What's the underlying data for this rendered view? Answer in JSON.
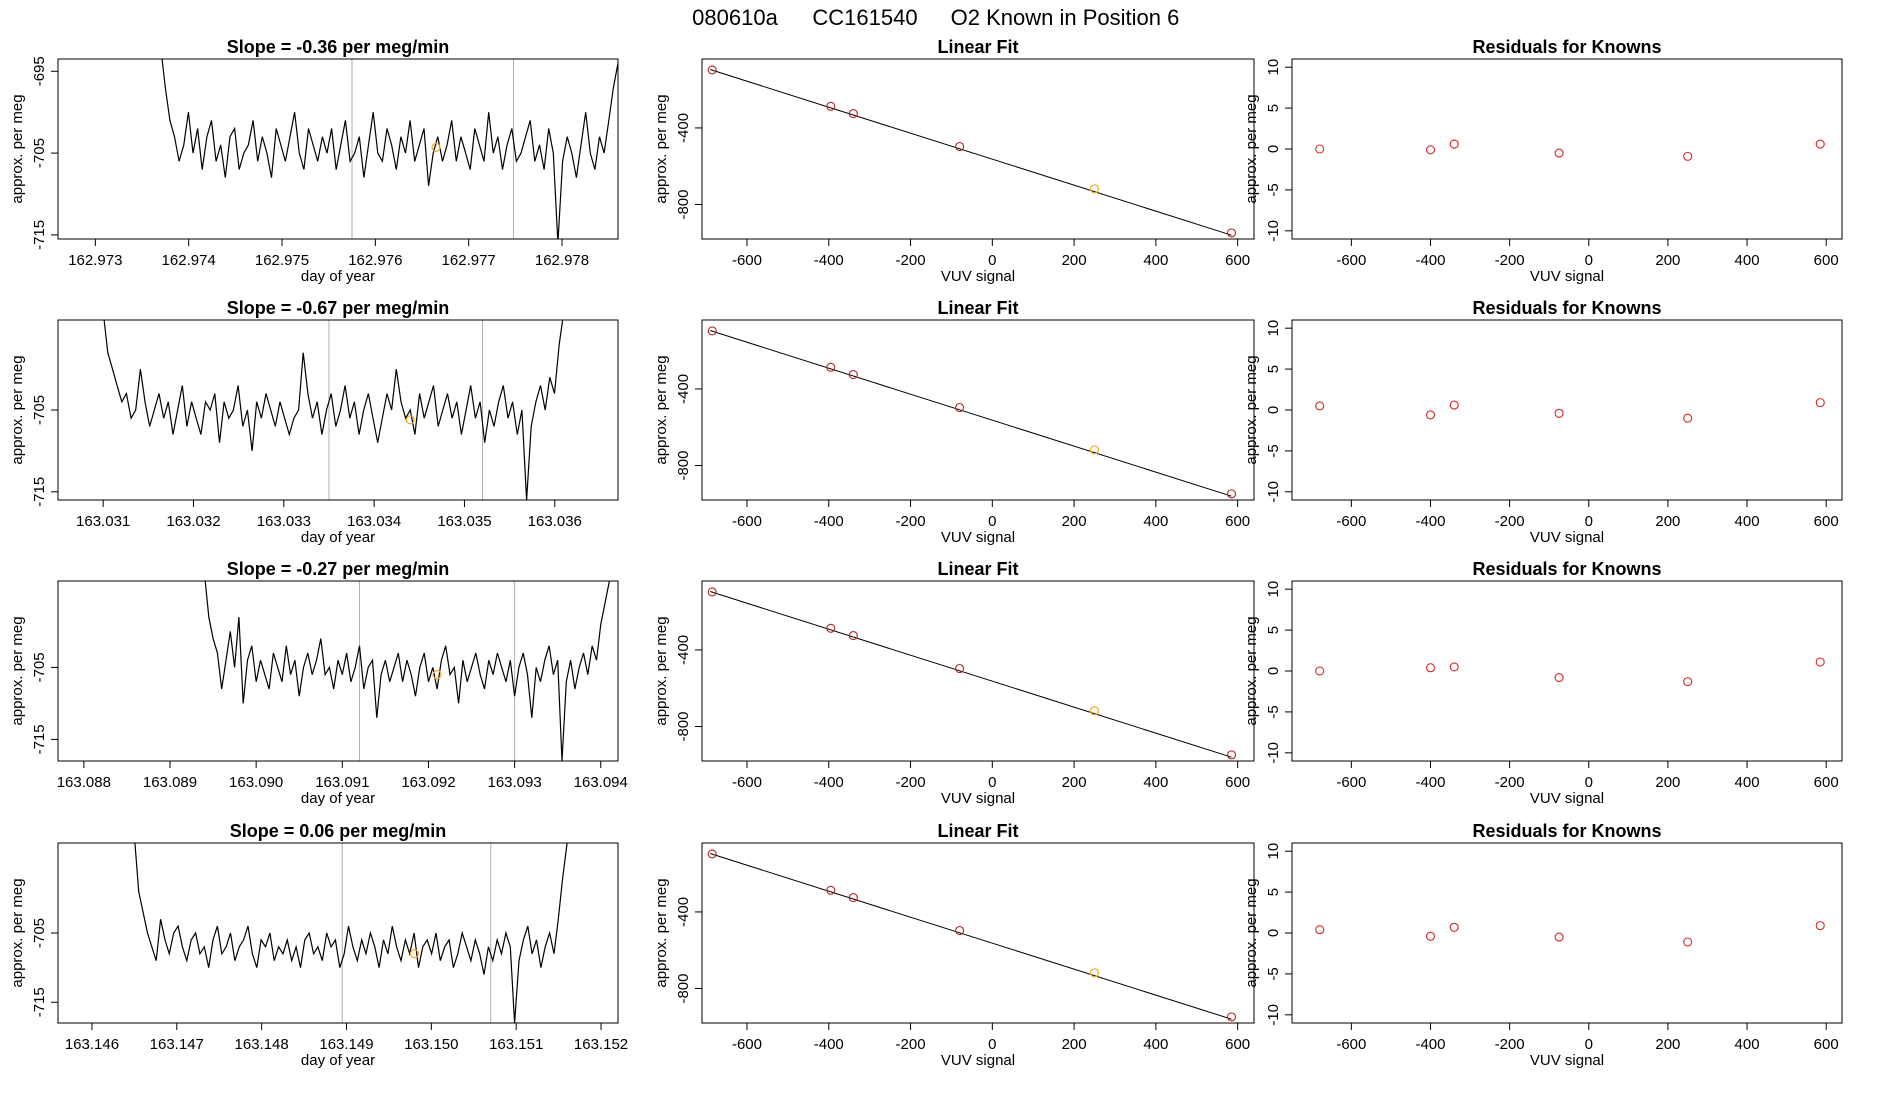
{
  "figure": {
    "title_parts": [
      "080610a",
      "CC161540",
      "O2 Known in Position  6"
    ]
  },
  "colors": {
    "line": "#000000",
    "marker_line": "#b0b0b0",
    "known_point": "#d62728",
    "sample_point": "#f5a623",
    "fit_point": "#b22222",
    "frame": "#000000"
  },
  "chart_data": [
    {
      "type": "line",
      "row": 1,
      "panel": "timeseries",
      "title": "Slope =  -0.36  per meg/min",
      "xlabel": "day of year",
      "ylabel": "approx. per meg",
      "xlim": [
        162.9726,
        162.9786
      ],
      "ylim": [
        -715.5,
        -693.5
      ],
      "xticks": [
        162.973,
        162.974,
        162.975,
        162.976,
        162.977,
        162.978
      ],
      "xtick_labels": [
        "162.973",
        "162.974",
        "162.975",
        "162.976",
        "162.977",
        "162.978"
      ],
      "yticks": [
        -695,
        -705,
        -715
      ],
      "ytick_labels": [
        "-695",
        "-705",
        "-715"
      ],
      "x_start": 162.9737,
      "x_end": 162.9786,
      "values": [
        -692,
        -697,
        -701,
        -703,
        -706,
        -704,
        -700,
        -705,
        -702,
        -707,
        -703,
        -701,
        -706,
        -704,
        -708,
        -703,
        -702,
        -707,
        -705,
        -704,
        -701,
        -706,
        -703,
        -705,
        -708,
        -702,
        -704,
        -706,
        -703,
        -700,
        -705,
        -707,
        -702,
        -704,
        -706,
        -703,
        -705,
        -702,
        -707,
        -704,
        -701,
        -706,
        -705,
        -703,
        -708,
        -704,
        -700,
        -705,
        -706,
        -702,
        -704,
        -707,
        -703,
        -705,
        -701,
        -706,
        -704,
        -702,
        -709,
        -705,
        -703,
        -706,
        -704,
        -701,
        -706,
        -703,
        -705,
        -707,
        -702,
        -704,
        -706,
        -700,
        -705,
        -703,
        -707,
        -704,
        -702,
        -706,
        -705,
        -703,
        -701,
        -706,
        -704,
        -707,
        -702,
        -705,
        -716,
        -706,
        -703,
        -705,
        -708,
        -704,
        -700,
        -705,
        -707,
        -703,
        -705,
        -701,
        -697,
        -694
      ],
      "vlines": [
        162.97575,
        162.97748
      ],
      "sample_point": [
        162.97665,
        -704.3
      ]
    },
    {
      "type": "scatter",
      "row": 1,
      "panel": "fit",
      "title": "Linear Fit",
      "xlabel": "VUV signal",
      "ylabel": "approx. per meg",
      "xlim": [
        -710,
        640
      ],
      "ylim": [
        -980,
        -40
      ],
      "xticks": [
        -600,
        -400,
        -200,
        0,
        200,
        400,
        600
      ],
      "xtick_labels": [
        "-600",
        "-400",
        "-200",
        "0",
        "200",
        "400",
        "600"
      ],
      "yticks": [
        -400,
        -800
      ],
      "ytick_labels": [
        "-400",
        "-800"
      ],
      "fit_line": [
        [
          -690,
          -95
        ],
        [
          585,
          -960
        ]
      ],
      "known_points": [
        [
          -685,
          -97
        ],
        [
          -395,
          -287
        ],
        [
          -340,
          -325
        ],
        [
          -80,
          -497
        ],
        [
          585,
          -948
        ]
      ],
      "sample_points": [
        [
          250,
          -718
        ]
      ]
    },
    {
      "type": "scatter",
      "row": 1,
      "panel": "residuals",
      "title": "Residuals for Knowns",
      "xlabel": "VUV signal",
      "ylabel": "approx. per meg",
      "xlim": [
        -750,
        640
      ],
      "ylim": [
        -11,
        11
      ],
      "xticks": [
        -600,
        -400,
        -200,
        0,
        200,
        400,
        600
      ],
      "xtick_labels": [
        "-600",
        "-400",
        "-200",
        "0",
        "200",
        "400",
        "600"
      ],
      "yticks": [
        10,
        5,
        0,
        -5,
        -10
      ],
      "ytick_labels": [
        "10",
        "5",
        "0",
        "-5",
        "-10"
      ],
      "points": [
        [
          -680,
          0.0
        ],
        [
          -400,
          -0.1
        ],
        [
          -340,
          0.6
        ],
        [
          -75,
          -0.5
        ],
        [
          250,
          -0.9
        ],
        [
          585,
          0.6
        ]
      ]
    },
    {
      "type": "line",
      "row": 2,
      "panel": "timeseries",
      "title": "Slope =  -0.67  per meg/min",
      "xlabel": "day of year",
      "ylabel": "approx. per meg",
      "xlim": [
        163.0305,
        163.0367
      ],
      "ylim": [
        -716,
        -694
      ],
      "xticks": [
        163.031,
        163.032,
        163.033,
        163.034,
        163.035,
        163.036
      ],
      "xtick_labels": [
        "163.031",
        "163.032",
        "163.033",
        "163.034",
        "163.035",
        "163.036"
      ],
      "yticks": [
        -705,
        -715
      ],
      "ytick_labels": [
        "-705",
        "-715"
      ],
      "x_start": 163.031,
      "x_end": 163.0361,
      "values": [
        -693,
        -698,
        -700,
        -702,
        -704,
        -703,
        -706,
        -705,
        -700,
        -704,
        -707,
        -705,
        -703,
        -706,
        -704,
        -708,
        -705,
        -702,
        -707,
        -704,
        -706,
        -708,
        -704,
        -705,
        -703,
        -709,
        -704,
        -706,
        -705,
        -702,
        -707,
        -705,
        -710,
        -704,
        -706,
        -703,
        -705,
        -707,
        -704,
        -706,
        -708,
        -706,
        -705,
        -698,
        -703,
        -706,
        -704,
        -708,
        -705,
        -703,
        -707,
        -705,
        -702,
        -706,
        -704,
        -708,
        -705,
        -703,
        -706,
        -709,
        -706,
        -703,
        -705,
        -700,
        -704,
        -706,
        -705,
        -708,
        -703,
        -706,
        -704,
        -702,
        -707,
        -705,
        -703,
        -706,
        -704,
        -708,
        -705,
        -702,
        -706,
        -704,
        -709,
        -705,
        -707,
        -704,
        -702,
        -706,
        -704,
        -708,
        -705,
        -716,
        -707,
        -704,
        -702,
        -705,
        -701,
        -703,
        -697,
        -693
      ],
      "vlines": [
        163.0335,
        163.0352
      ],
      "sample_point": [
        163.0344,
        -706.2
      ]
    },
    {
      "type": "scatter",
      "row": 2,
      "panel": "fit",
      "title": "Linear Fit",
      "xlabel": "VUV signal",
      "ylabel": "approx. per meg",
      "xlim": [
        -710,
        640
      ],
      "ylim": [
        -980,
        -40
      ],
      "xticks": [
        -600,
        -400,
        -200,
        0,
        200,
        400,
        600
      ],
      "xtick_labels": [
        "-600",
        "-400",
        "-200",
        "0",
        "200",
        "400",
        "600"
      ],
      "yticks": [
        -400,
        -800
      ],
      "ytick_labels": [
        "-400",
        "-800"
      ],
      "fit_line": [
        [
          -690,
          -95
        ],
        [
          585,
          -960
        ]
      ],
      "known_points": [
        [
          -685,
          -97
        ],
        [
          -395,
          -287
        ],
        [
          -340,
          -325
        ],
        [
          -80,
          -497
        ],
        [
          585,
          -948
        ]
      ],
      "sample_points": [
        [
          250,
          -718
        ]
      ]
    },
    {
      "type": "scatter",
      "row": 2,
      "panel": "residuals",
      "title": "Residuals for Knowns",
      "xlabel": "VUV signal",
      "ylabel": "approx. per meg",
      "xlim": [
        -750,
        640
      ],
      "ylim": [
        -11,
        11
      ],
      "xticks": [
        -600,
        -400,
        -200,
        0,
        200,
        400,
        600
      ],
      "xtick_labels": [
        "-600",
        "-400",
        "-200",
        "0",
        "200",
        "400",
        "600"
      ],
      "yticks": [
        10,
        5,
        0,
        -5,
        -10
      ],
      "ytick_labels": [
        "10",
        "5",
        "0",
        "-5",
        "-10"
      ],
      "points": [
        [
          -680,
          0.5
        ],
        [
          -400,
          -0.6
        ],
        [
          -340,
          0.6
        ],
        [
          -75,
          -0.4
        ],
        [
          250,
          -1.0
        ],
        [
          585,
          0.9
        ]
      ]
    },
    {
      "type": "line",
      "row": 3,
      "panel": "timeseries",
      "title": "Slope =  -0.27  per meg/min",
      "xlabel": "day of year",
      "ylabel": "approx. per meg",
      "xlim": [
        163.0877,
        163.0942
      ],
      "ylim": [
        -718,
        -693
      ],
      "xticks": [
        163.088,
        163.089,
        163.09,
        163.091,
        163.092,
        163.093,
        163.094
      ],
      "xtick_labels": [
        "163.088",
        "163.089",
        "163.090",
        "163.091",
        "163.092",
        "163.093",
        "163.094"
      ],
      "yticks": [
        -705,
        -715
      ],
      "ytick_labels": [
        "-705",
        "-715"
      ],
      "x_start": 163.0894,
      "x_end": 163.0941,
      "values": [
        -692,
        -698,
        -701,
        -703,
        -708,
        -704,
        -700,
        -705,
        -698,
        -710,
        -704,
        -702,
        -707,
        -704,
        -706,
        -708,
        -703,
        -705,
        -707,
        -702,
        -706,
        -704,
        -709,
        -705,
        -703,
        -706,
        -704,
        -701,
        -706,
        -705,
        -708,
        -704,
        -706,
        -703,
        -707,
        -705,
        -702,
        -708,
        -705,
        -704,
        -712,
        -706,
        -704,
        -707,
        -705,
        -703,
        -707,
        -704,
        -706,
        -709,
        -705,
        -703,
        -707,
        -705,
        -708,
        -704,
        -702,
        -706,
        -705,
        -710,
        -704,
        -707,
        -705,
        -703,
        -706,
        -708,
        -704,
        -706,
        -703,
        -705,
        -707,
        -704,
        -709,
        -705,
        -703,
        -706,
        -712,
        -705,
        -707,
        -704,
        -702,
        -706,
        -704,
        -718,
        -707,
        -704,
        -708,
        -705,
        -703,
        -706,
        -702,
        -704,
        -699,
        -696,
        -693
      ],
      "vlines": [
        163.0912,
        163.093
      ],
      "sample_point": [
        163.0921,
        -706.0
      ]
    },
    {
      "type": "scatter",
      "row": 3,
      "panel": "fit",
      "title": "Linear Fit",
      "xlabel": "VUV signal",
      "ylabel": "approx. per meg",
      "xlim": [
        -710,
        640
      ],
      "ylim": [
        -980,
        -40
      ],
      "xticks": [
        -600,
        -400,
        -200,
        0,
        200,
        400,
        600
      ],
      "xtick_labels": [
        "-600",
        "-400",
        "-200",
        "0",
        "200",
        "400",
        "600"
      ],
      "yticks": [
        -400,
        -800
      ],
      "ytick_labels": [
        "-400",
        "-800"
      ],
      "fit_line": [
        [
          -690,
          -95
        ],
        [
          585,
          -960
        ]
      ],
      "known_points": [
        [
          -685,
          -97
        ],
        [
          -395,
          -287
        ],
        [
          -340,
          -325
        ],
        [
          -80,
          -497
        ],
        [
          585,
          -948
        ]
      ],
      "sample_points": [
        [
          250,
          -718
        ]
      ]
    },
    {
      "type": "scatter",
      "row": 3,
      "panel": "residuals",
      "title": "Residuals for Knowns",
      "xlabel": "VUV signal",
      "ylabel": "approx. per meg",
      "xlim": [
        -750,
        640
      ],
      "ylim": [
        -11,
        11
      ],
      "xticks": [
        -600,
        -400,
        -200,
        0,
        200,
        400,
        600
      ],
      "xtick_labels": [
        "-600",
        "-400",
        "-200",
        "0",
        "200",
        "400",
        "600"
      ],
      "yticks": [
        10,
        5,
        0,
        -5,
        -10
      ],
      "ytick_labels": [
        "10",
        "5",
        "0",
        "-5",
        "-10"
      ],
      "points": [
        [
          -680,
          0.0
        ],
        [
          -400,
          0.4
        ],
        [
          -340,
          0.5
        ],
        [
          -75,
          -0.8
        ],
        [
          250,
          -1.3
        ],
        [
          585,
          1.1
        ]
      ]
    },
    {
      "type": "line",
      "row": 4,
      "panel": "timeseries",
      "title": "Slope =  0.06  per meg/min",
      "xlabel": "day of year",
      "ylabel": "approx. per meg",
      "xlim": [
        163.1456,
        163.1522
      ],
      "ylim": [
        -718,
        -692
      ],
      "xticks": [
        163.146,
        163.147,
        163.148,
        163.149,
        163.15,
        163.151,
        163.152
      ],
      "xtick_labels": [
        "163.146",
        "163.147",
        "163.148",
        "163.149",
        "163.150",
        "163.151",
        "163.152"
      ],
      "yticks": [
        -705,
        -715
      ],
      "ytick_labels": [
        "-705",
        "-715"
      ],
      "x_start": 163.1465,
      "x_end": 163.1516,
      "values": [
        -691,
        -699,
        -702,
        -705,
        -707,
        -709,
        -703,
        -706,
        -708,
        -705,
        -704,
        -707,
        -709,
        -706,
        -705,
        -708,
        -707,
        -710,
        -706,
        -704,
        -708,
        -707,
        -705,
        -709,
        -707,
        -706,
        -704,
        -708,
        -710,
        -706,
        -707,
        -705,
        -709,
        -707,
        -708,
        -706,
        -709,
        -707,
        -710,
        -706,
        -705,
        -708,
        -707,
        -709,
        -705,
        -707,
        -706,
        -710,
        -708,
        -704,
        -707,
        -709,
        -706,
        -708,
        -705,
        -707,
        -710,
        -706,
        -708,
        -704,
        -707,
        -709,
        -706,
        -708,
        -705,
        -710,
        -707,
        -706,
        -708,
        -705,
        -709,
        -707,
        -706,
        -710,
        -708,
        -705,
        -707,
        -709,
        -706,
        -708,
        -711,
        -707,
        -709,
        -706,
        -708,
        -705,
        -707,
        -718,
        -709,
        -706,
        -704,
        -708,
        -706,
        -710,
        -707,
        -705,
        -708,
        -703,
        -697,
        -692
      ],
      "vlines": [
        163.14895,
        163.1507
      ],
      "sample_point": [
        163.1498,
        -708.0
      ]
    },
    {
      "type": "scatter",
      "row": 4,
      "panel": "fit",
      "title": "Linear Fit",
      "xlabel": "VUV signal",
      "ylabel": "approx. per meg",
      "xlim": [
        -710,
        640
      ],
      "ylim": [
        -980,
        -40
      ],
      "xticks": [
        -600,
        -400,
        -200,
        0,
        200,
        400,
        600
      ],
      "xtick_labels": [
        "-600",
        "-400",
        "-200",
        "0",
        "200",
        "400",
        "600"
      ],
      "yticks": [
        -400,
        -800
      ],
      "ytick_labels": [
        "-400",
        "-800"
      ],
      "fit_line": [
        [
          -690,
          -95
        ],
        [
          585,
          -960
        ]
      ],
      "known_points": [
        [
          -685,
          -97
        ],
        [
          -395,
          -287
        ],
        [
          -340,
          -325
        ],
        [
          -80,
          -497
        ],
        [
          585,
          -948
        ]
      ],
      "sample_points": [
        [
          250,
          -718
        ]
      ]
    },
    {
      "type": "scatter",
      "row": 4,
      "panel": "residuals",
      "title": "Residuals for Knowns",
      "xlabel": "VUV signal",
      "ylabel": "approx. per meg",
      "xlim": [
        -750,
        640
      ],
      "ylim": [
        -11,
        11
      ],
      "xticks": [
        -600,
        -400,
        -200,
        0,
        200,
        400,
        600
      ],
      "xtick_labels": [
        "-600",
        "-400",
        "-200",
        "0",
        "200",
        "400",
        "600"
      ],
      "yticks": [
        10,
        5,
        0,
        -5,
        -10
      ],
      "ytick_labels": [
        "10",
        "5",
        "0",
        "-5",
        "-10"
      ],
      "points": [
        [
          -680,
          0.4
        ],
        [
          -400,
          -0.4
        ],
        [
          -340,
          0.7
        ],
        [
          -75,
          -0.5
        ],
        [
          250,
          -1.1
        ],
        [
          585,
          0.9
        ]
      ]
    }
  ]
}
